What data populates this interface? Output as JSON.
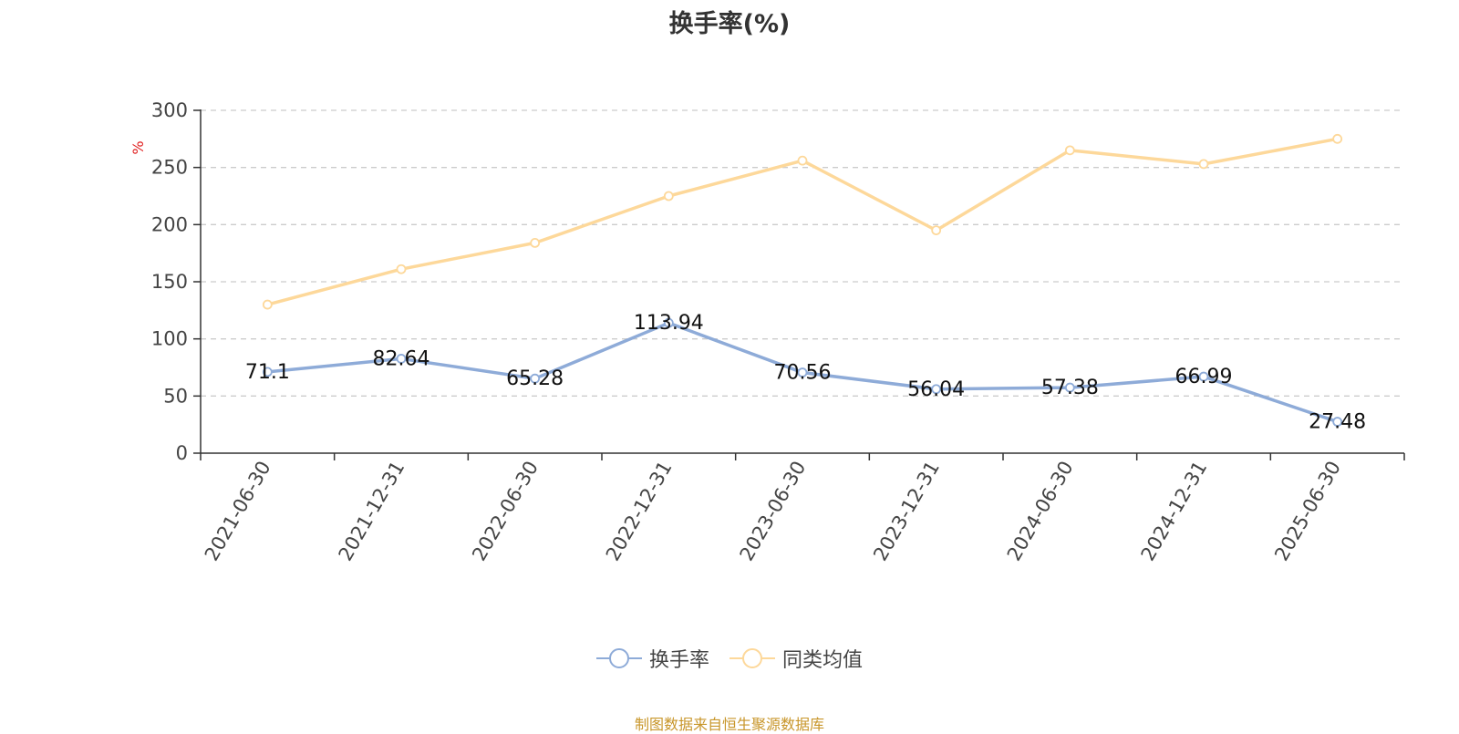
{
  "chart_data": {
    "type": "line",
    "title": "换手率(%)",
    "ylabel": "%",
    "xlabel": "",
    "ylim": [
      0,
      300
    ],
    "yticks": [
      0,
      50,
      100,
      150,
      200,
      250,
      300
    ],
    "categories": [
      "2021-06-30",
      "2021-12-31",
      "2022-06-30",
      "2022-12-31",
      "2023-06-30",
      "2023-12-31",
      "2024-06-30",
      "2024-12-31",
      "2025-06-30"
    ],
    "series": [
      {
        "name": "换手率",
        "color": "#8eabd8",
        "values": [
          71.1,
          82.64,
          65.28,
          113.94,
          70.56,
          56.04,
          57.38,
          66.99,
          27.48
        ],
        "labels": [
          "71.1",
          "82.64",
          "65.28",
          "113.94",
          "70.56",
          "56.04",
          "57.38",
          "66.99",
          "27.48"
        ],
        "show_labels": true
      },
      {
        "name": "同类均值",
        "color": "#fdd89a",
        "values": [
          130,
          161,
          184,
          225,
          256,
          195,
          265,
          253,
          275
        ],
        "show_labels": false
      }
    ],
    "grid": true,
    "legend_position": "bottom-center"
  },
  "footer": {
    "source": "制图数据来自恒生聚源数据库",
    "source_color": "#c8962a"
  }
}
